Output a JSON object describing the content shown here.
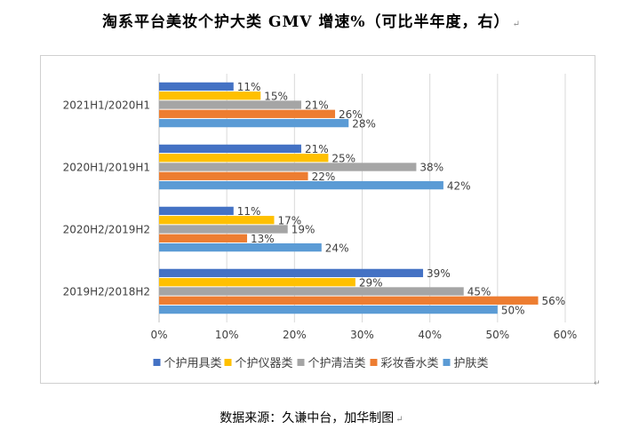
{
  "header": {
    "title": "淘系平台美妆个护大类 GMV 增速%（可比半年度，右）"
  },
  "footer": {
    "source": "数据来源：久谦中台，加华制图"
  },
  "chart_data": {
    "type": "bar",
    "orientation": "horizontal",
    "categories": [
      "2021H1/2020H1",
      "2020H1/2019H1",
      "2020H2/2019H2",
      "2019H2/2018H2"
    ],
    "series": [
      {
        "name": "个护用具类",
        "color": "#4472C4",
        "values": [
          11,
          21,
          11,
          39
        ],
        "labels": [
          "11%",
          "21%",
          "11%",
          "39%"
        ]
      },
      {
        "name": "个护仪器类",
        "color": "#FFC000",
        "values": [
          15,
          25,
          17,
          29
        ],
        "labels": [
          "15%",
          "25%",
          "17%",
          "29%"
        ]
      },
      {
        "name": "个护清洁类",
        "color": "#A5A5A5",
        "values": [
          21,
          38,
          19,
          45
        ],
        "labels": [
          "21%",
          "38%",
          "19%",
          "45%"
        ]
      },
      {
        "name": "彩妆香水类",
        "color": "#ED7D31",
        "values": [
          26,
          22,
          13,
          56
        ],
        "labels": [
          "26%",
          "22%",
          "13%",
          "56%"
        ]
      },
      {
        "name": "护肤类",
        "color": "#5B9BD5",
        "values": [
          28,
          42,
          24,
          50
        ],
        "labels": [
          "28%",
          "42%",
          "24%",
          "50%"
        ]
      }
    ],
    "xlim": [
      0,
      60
    ],
    "xticks": [
      0,
      10,
      20,
      30,
      40,
      50,
      60
    ],
    "xtick_labels": [
      "0%",
      "10%",
      "20%",
      "30%",
      "40%",
      "50%",
      "60%"
    ],
    "grid": true,
    "legend": "bottom"
  }
}
